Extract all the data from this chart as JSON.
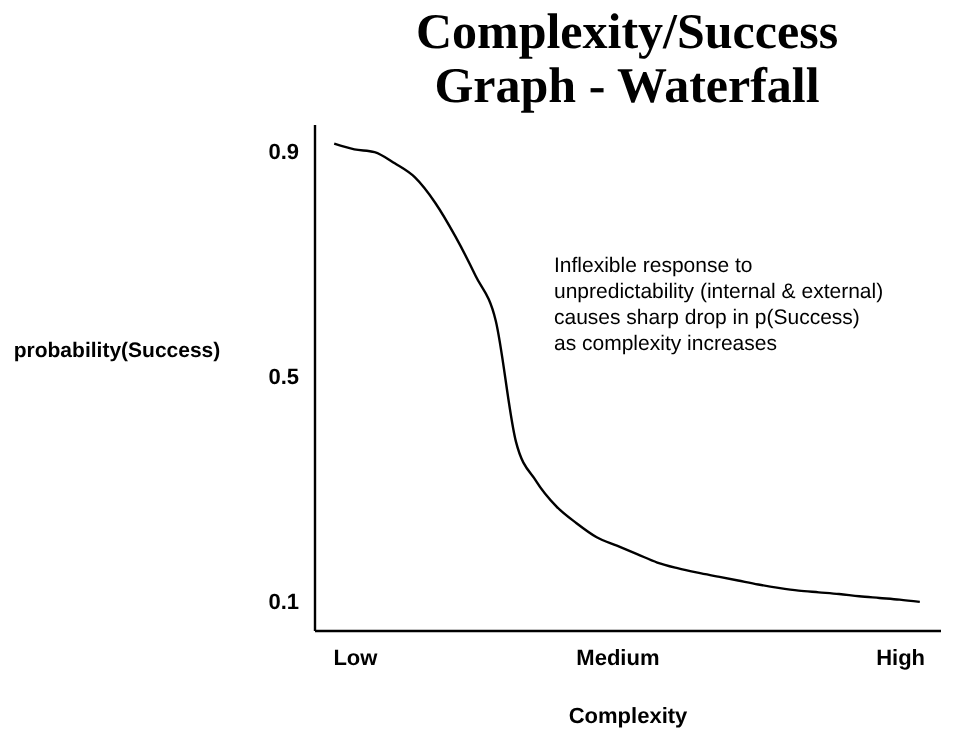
{
  "chart_data": {
    "type": "line",
    "title": "Complexity/Success\nGraph - Waterfall",
    "xlabel": "Complexity",
    "ylabel": "probability(Success)",
    "categories": [
      null,
      "Low",
      null,
      null,
      null,
      null,
      null,
      null,
      null,
      null,
      null,
      null,
      null,
      null,
      "Medium",
      null,
      null,
      null,
      null,
      null,
      null,
      null,
      null,
      null,
      null,
      null,
      null,
      null,
      "High",
      null
    ],
    "series": [
      {
        "color": "#000000",
        "values": [
          0.915,
          0.905,
          0.9,
          0.88,
          0.855,
          0.81,
          0.75,
          0.68,
          0.6,
          0.385,
          0.315,
          0.27,
          0.24,
          0.215,
          0.2,
          0.185,
          0.17,
          0.16,
          0.152,
          0.145,
          0.138,
          0.131,
          0.125,
          0.12,
          0.117,
          0.114,
          0.11,
          0.107,
          0.104,
          0.1
        ]
      }
    ],
    "ylim": [
      0.05,
      0.95
    ],
    "yticks": [
      0.1,
      0.5,
      0.9
    ],
    "annotations": [
      "Inflexible response to\nunpredictability (internal & external)\ncauses sharp drop in p(Success)\nas complexity increases"
    ],
    "grid": false,
    "legend": false,
    "marker": "none",
    "line_style": "solid"
  }
}
